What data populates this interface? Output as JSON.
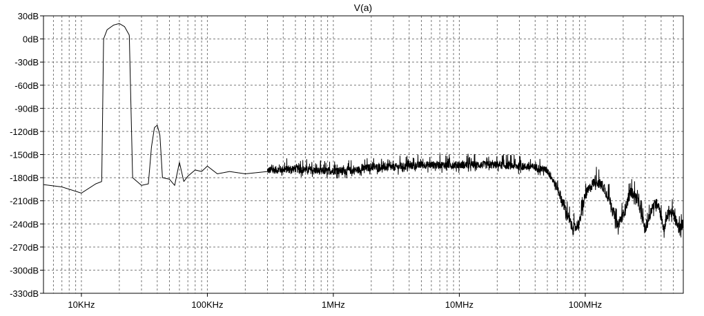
{
  "chart_data": {
    "type": "line",
    "title": "V(a)",
    "x_scale": "log",
    "xlim_hz": [
      5000,
      600000000
    ],
    "ylim_db": [
      -330,
      30
    ],
    "grid": true,
    "y_ticks": [
      {
        "value": 30,
        "label": "30dB"
      },
      {
        "value": 0,
        "label": "0dB"
      },
      {
        "value": -30,
        "label": "-30dB"
      },
      {
        "value": -60,
        "label": "-60dB"
      },
      {
        "value": -90,
        "label": "-90dB"
      },
      {
        "value": -120,
        "label": "-120dB"
      },
      {
        "value": -150,
        "label": "-150dB"
      },
      {
        "value": -180,
        "label": "-180dB"
      },
      {
        "value": -210,
        "label": "-210dB"
      },
      {
        "value": -240,
        "label": "-240dB"
      },
      {
        "value": -270,
        "label": "-270dB"
      },
      {
        "value": -300,
        "label": "-300dB"
      },
      {
        "value": -330,
        "label": "-330dB"
      }
    ],
    "x_ticks": [
      {
        "value": 10000,
        "label": "10KHz"
      },
      {
        "value": 100000,
        "label": "100KHz"
      },
      {
        "value": 1000000,
        "label": "1MHz"
      },
      {
        "value": 10000000,
        "label": "10MHz"
      },
      {
        "value": 100000000,
        "label": "100MHz"
      }
    ],
    "series": [
      {
        "color": "#000000",
        "points": [
          [
            5000,
            -189
          ],
          [
            7000,
            -192
          ],
          [
            10000,
            -200
          ],
          [
            13000,
            -188
          ],
          [
            14500,
            -185
          ],
          [
            15000,
            0
          ],
          [
            16000,
            12
          ],
          [
            18000,
            18
          ],
          [
            20000,
            20
          ],
          [
            22000,
            16
          ],
          [
            24000,
            5
          ],
          [
            25500,
            -180
          ],
          [
            30000,
            -190
          ],
          [
            34000,
            -188
          ],
          [
            36000,
            -140
          ],
          [
            38000,
            -115
          ],
          [
            40000,
            -112
          ],
          [
            42000,
            -125
          ],
          [
            44000,
            -180
          ],
          [
            50000,
            -182
          ],
          [
            55000,
            -190
          ],
          [
            60000,
            -160
          ],
          [
            65000,
            -185
          ],
          [
            70000,
            -178
          ],
          [
            80000,
            -170
          ],
          [
            90000,
            -172
          ],
          [
            100000,
            -165
          ],
          [
            120000,
            -175
          ],
          [
            150000,
            -172
          ],
          [
            200000,
            -175
          ],
          [
            300000,
            -172
          ],
          [
            500000,
            -170
          ],
          [
            800000,
            -173
          ],
          [
            1500000,
            -172
          ],
          [
            2000000,
            -168
          ],
          [
            3000000,
            -168
          ],
          [
            5000000,
            -165
          ],
          [
            10000000,
            -165
          ],
          [
            20000000,
            -165
          ],
          [
            40000000,
            -168
          ],
          [
            50000000,
            -172
          ],
          [
            60000000,
            -195
          ],
          [
            70000000,
            -225
          ],
          [
            80000000,
            -250
          ],
          [
            90000000,
            -240
          ],
          [
            100000000,
            -205
          ],
          [
            120000000,
            -185
          ],
          [
            140000000,
            -195
          ],
          [
            160000000,
            -215
          ],
          [
            180000000,
            -245
          ],
          [
            200000000,
            -230
          ],
          [
            230000000,
            -200
          ],
          [
            260000000,
            -210
          ],
          [
            300000000,
            -250
          ],
          [
            340000000,
            -220
          ],
          [
            380000000,
            -215
          ],
          [
            420000000,
            -250
          ],
          [
            460000000,
            -225
          ],
          [
            500000000,
            -230
          ],
          [
            560000000,
            -250
          ],
          [
            600000000,
            -240
          ]
        ]
      }
    ]
  }
}
